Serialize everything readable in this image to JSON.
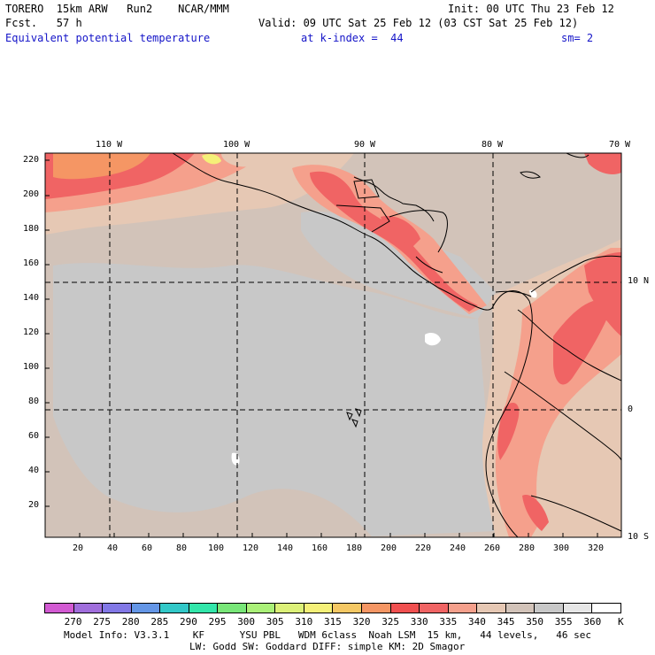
{
  "header": {
    "model": "TORERO  15km ARW   Run2    NCAR/MMM",
    "init": "Init: 00 UTC Thu 23 Feb 12",
    "fcst": "Fcst.   57 h",
    "valid": "Valid: 09 UTC Sat 25 Feb 12 (03 CST Sat 25 Feb 12)",
    "field": "Equivalent potential temperature",
    "level": "at k-index =  44",
    "smooth": "sm= 2"
  },
  "axes": {
    "top_lon": [
      "110 W",
      "100 W",
      "90 W",
      "80 W",
      "70 W"
    ],
    "right_lat": [
      "10 N",
      "0",
      "10 S"
    ],
    "left_y": [
      "220",
      "200",
      "180",
      "160",
      "140",
      "120",
      "100",
      "80",
      "60",
      "40",
      "20"
    ],
    "bottom_x": [
      "20",
      "40",
      "60",
      "80",
      "100",
      "120",
      "140",
      "160",
      "180",
      "200",
      "220",
      "240",
      "260",
      "280",
      "300",
      "320"
    ]
  },
  "colorbar": {
    "labels": [
      "270",
      "275",
      "280",
      "285",
      "290",
      "295",
      "300",
      "305",
      "310",
      "315",
      "320",
      "325",
      "330",
      "335",
      "340",
      "345",
      "350",
      "355",
      "360"
    ],
    "unit": "K",
    "colors": [
      "#d25ad2",
      "#a06edc",
      "#8278e6",
      "#6496e6",
      "#32c8c8",
      "#32e6aa",
      "#78e678",
      "#aaf078",
      "#dcf078",
      "#f5f078",
      "#f5c864",
      "#f59664",
      "#f05050",
      "#f06464",
      "#f5a08c",
      "#e6c8b4",
      "#d2c3b9",
      "#c8c8c8",
      "#e6e6e6",
      "#ffffff"
    ]
  },
  "footer": {
    "line1": "Model Info: V3.3.1    KF      YSU PBL   WDM 6class  Noah LSM  15 km,   44 levels,   46 sec",
    "line2": "LW: Godd SW: Goddard DIFF: simple KM: 2D Smagor"
  }
}
